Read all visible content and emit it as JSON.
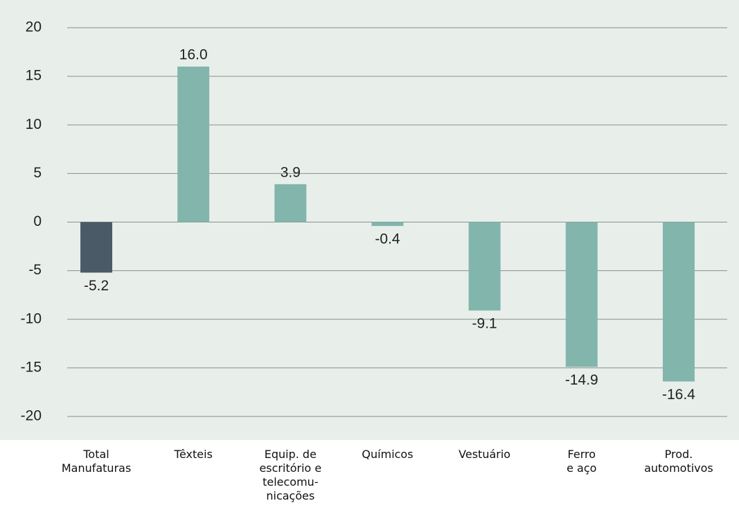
{
  "chart_data": {
    "type": "bar",
    "categories": [
      "Total\nManufaturas",
      "Têxteis",
      "Equip. de\nescritório e\ntelecomu-\nnicações",
      "Químicos",
      "Vestuário",
      "Ferro\ne aço",
      "Prod.\nautomotivos"
    ],
    "values": [
      -5.2,
      16,
      3.9,
      -0.4,
      -9.1,
      -14.9,
      -16.4
    ],
    "value_labels": [
      "-5.2",
      "16.0",
      "3.9",
      "-0.4",
      "-9.1",
      "-14.9",
      "-16.4"
    ],
    "colors": [
      "#4a5a66",
      "#82b5ac",
      "#82b5ac",
      "#82b5ac",
      "#82b5ac",
      "#82b5ac",
      "#82b5ac"
    ],
    "ylim": [
      -20,
      20
    ],
    "yticks": [
      -20,
      -15,
      -10,
      -5,
      0,
      5,
      10,
      15,
      20
    ],
    "grid": true
  }
}
